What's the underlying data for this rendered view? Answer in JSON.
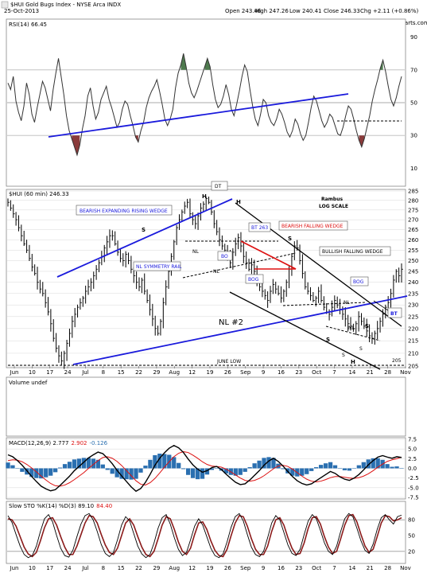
{
  "header": {
    "symbol": "$HUI Gold Bugs Index - NYSE Arca INDX",
    "date": "25-Oct-2013",
    "open": "Open 243.46",
    "high": "High 247.26",
    "low": "Low 240.41",
    "close": "Close 246.33",
    "change": "Chg +2.11 (+0.86%)",
    "credit": "© StockCharts.com"
  },
  "colors": {
    "price_bar": "#000000",
    "trendline_blue": "#1a1adc",
    "trendline_black": "#000000",
    "trendline_red": "#dd1111",
    "rsi_overbought": "#4e7a4e",
    "rsi_oversold": "#8a3b3b",
    "macd": "#000000",
    "macd_signal": "#dd1111",
    "histogram": "#2a6fb0",
    "sto_k": "#000000",
    "sto_d": "#8b1a1a",
    "grid": "#d8d8d8"
  },
  "chart_data": [
    {
      "type": "line",
      "panel": "rsi",
      "title": "RSI(14) 66.45",
      "ylim": [
        0,
        100
      ],
      "y_ticks": [
        10,
        30,
        50,
        70,
        90
      ],
      "reference_lines": [
        30,
        50,
        70
      ],
      "values": [
        62,
        58,
        66,
        51,
        44,
        39,
        48,
        62,
        55,
        43,
        38,
        47,
        55,
        63,
        59,
        52,
        45,
        58,
        68,
        77,
        66,
        55,
        42,
        33,
        28,
        23,
        18,
        24,
        34,
        42,
        54,
        59,
        48,
        40,
        44,
        52,
        56,
        60,
        52,
        47,
        41,
        35,
        38,
        46,
        51,
        49,
        42,
        36,
        29,
        26,
        33,
        38,
        47,
        53,
        57,
        60,
        64,
        57,
        49,
        40,
        36,
        40,
        46,
        59,
        68,
        73,
        80,
        72,
        62,
        56,
        53,
        57,
        62,
        67,
        72,
        77,
        72,
        61,
        52,
        47,
        49,
        54,
        61,
        55,
        46,
        42,
        49,
        57,
        66,
        73,
        69,
        58,
        48,
        40,
        36,
        43,
        52,
        50,
        42,
        38,
        36,
        40,
        46,
        43,
        38,
        32,
        29,
        33,
        40,
        37,
        31,
        27,
        30,
        38,
        47,
        54,
        51,
        45,
        39,
        35,
        38,
        43,
        41,
        36,
        31,
        30,
        35,
        42,
        48,
        46,
        40,
        33,
        27,
        23,
        28,
        35,
        42,
        51,
        58,
        64,
        71,
        76,
        69,
        60,
        52,
        48,
        53,
        60,
        66
      ]
    },
    {
      "type": "bar",
      "panel": "price",
      "title": "$HUI (60 min) 246.33",
      "annotation_note": "Rambus LOG SCALE",
      "ylim": [
        205,
        285
      ],
      "y_ticks": [
        205,
        210,
        215,
        220,
        225,
        230,
        235,
        240,
        245,
        250,
        255,
        260,
        265,
        270,
        275,
        280,
        285
      ],
      "x_ticks": [
        "Jun",
        "10",
        "17",
        "24",
        "Jul",
        "8",
        "15",
        "22",
        "29",
        "Aug",
        "12",
        "19",
        "26",
        "Sep",
        "9",
        "16",
        "23",
        "Oct",
        "7",
        "14",
        "21",
        "28",
        "Nov"
      ],
      "close": [
        279,
        276,
        273,
        270,
        266,
        262,
        258,
        255,
        251,
        247,
        244,
        240,
        237,
        235,
        231,
        227,
        222,
        216,
        212,
        209,
        207,
        210,
        214,
        218,
        223,
        226,
        229,
        231,
        233,
        236,
        238,
        240,
        243,
        246,
        249,
        252,
        256,
        259,
        262,
        262,
        258,
        254,
        251,
        250,
        253,
        250,
        246,
        243,
        240,
        238,
        241,
        236,
        232,
        228,
        224,
        220,
        218,
        223,
        231,
        238,
        245,
        252,
        259,
        266,
        270,
        274,
        277,
        279,
        273,
        270,
        268,
        272,
        276,
        278,
        281,
        279,
        274,
        268,
        264,
        260,
        257,
        255,
        252,
        249,
        254,
        258,
        261,
        257,
        252,
        249,
        246,
        248,
        245,
        241,
        238,
        236,
        234,
        232,
        236,
        239,
        237,
        235,
        233,
        236,
        240,
        246,
        252,
        257,
        256,
        250,
        244,
        238,
        236,
        234,
        232,
        233,
        236,
        232,
        229,
        227,
        226,
        229,
        232,
        230,
        228,
        226,
        224,
        222,
        221,
        220,
        222,
        225,
        223,
        221,
        219,
        217,
        216,
        218,
        220,
        223,
        226,
        229,
        231,
        235,
        241,
        245,
        243,
        246
      ]
    },
    {
      "type": "line",
      "panel": "volume",
      "title": "Volume undef",
      "values": []
    },
    {
      "type": "line",
      "panel": "macd",
      "title": "MACD(12,26,9) 2.777, 2.902, -0.126",
      "legend": [
        "MACD(12,26,9) 2.777",
        "2.902",
        "-0.126"
      ],
      "ylim": [
        -7.5,
        7.5
      ],
      "y_ticks": [
        -7.5,
        -5.0,
        -2.5,
        0.0,
        2.5,
        5.0,
        7.5
      ],
      "macd": [
        3.5,
        3.0,
        2.0,
        0.8,
        -0.6,
        -2.1,
        -3.4,
        -4.6,
        -5.3,
        -5.8,
        -5.5,
        -4.4,
        -3.2,
        -2.0,
        -0.6,
        0.5,
        1.6,
        2.7,
        3.5,
        4.2,
        3.8,
        2.6,
        1.2,
        -0.5,
        -2.0,
        -3.4,
        -4.8,
        -5.9,
        -5.2,
        -3.6,
        -1.5,
        0.8,
        2.6,
        4.0,
        5.2,
        5.9,
        5.3,
        4.1,
        2.4,
        0.9,
        -0.2,
        -1.0,
        -0.6,
        0.2,
        0.5,
        -0.3,
        -1.5,
        -2.6,
        -3.6,
        -4.2,
        -4.0,
        -3.0,
        -1.8,
        -0.6,
        0.8,
        1.9,
        2.6,
        1.8,
        0.6,
        -0.8,
        -2.1,
        -3.2,
        -3.9,
        -4.3,
        -4.0,
        -3.2,
        -2.4,
        -1.6,
        -0.8,
        -1.3,
        -2.2,
        -2.8,
        -3.1,
        -2.5,
        -1.6,
        -0.4,
        0.9,
        2.0,
        2.9,
        3.3,
        2.9,
        2.6,
        3.0,
        2.8
      ],
      "signal": [
        2.0,
        2.2,
        2.1,
        1.7,
        1.0,
        0.1,
        -0.9,
        -2.0,
        -3.0,
        -3.9,
        -4.5,
        -4.6,
        -4.3,
        -3.7,
        -2.9,
        -2.0,
        -1.1,
        0.0,
        1.0,
        2.0,
        2.8,
        3.0,
        2.6,
        1.8,
        0.7,
        -0.6,
        -1.9,
        -3.2,
        -4.1,
        -4.3,
        -3.7,
        -2.6,
        -1.2,
        0.3,
        1.7,
        3.0,
        3.9,
        4.3,
        4.1,
        3.4,
        2.6,
        1.7,
        1.0,
        0.6,
        0.5,
        0.3,
        -0.2,
        -0.9,
        -1.7,
        -2.5,
        -3.1,
        -3.3,
        -3.1,
        -2.6,
        -1.9,
        -1.0,
        -0.1,
        0.6,
        0.8,
        0.5,
        -0.2,
        -1.1,
        -2.0,
        -2.8,
        -3.3,
        -3.5,
        -3.3,
        -2.9,
        -2.4,
        -2.1,
        -2.1,
        -2.3,
        -2.5,
        -2.6,
        -2.4,
        -2.0,
        -1.4,
        -0.6,
        0.3,
        1.1,
        1.8,
        2.2,
        2.5,
        2.9
      ]
    },
    {
      "type": "line",
      "panel": "stochastic",
      "title": "Slow STO %K(14) %D(3) 89.10, 84.40",
      "legend": [
        "Slow STO %K(14) %D(3) 89.10",
        "84.40"
      ],
      "ylim": [
        0,
        100
      ],
      "y_ticks": [
        20,
        50,
        80
      ],
      "reference_lines": [
        20,
        80
      ],
      "k": [
        88,
        75,
        52,
        30,
        14,
        8,
        12,
        30,
        58,
        82,
        90,
        76,
        50,
        26,
        12,
        9,
        22,
        48,
        72,
        88,
        92,
        80,
        58,
        33,
        16,
        10,
        18,
        42,
        70,
        86,
        78,
        54,
        30,
        15,
        8,
        14,
        36,
        64,
        84,
        90,
        72,
        46,
        24,
        12,
        18,
        42,
        68,
        82,
        70,
        48,
        26,
        12,
        8,
        15,
        38,
        66,
        86,
        92,
        78,
        52,
        28,
        14,
        10,
        20,
        46,
        74,
        88,
        80,
        56,
        32,
        16,
        12,
        24,
        52,
        78,
        90,
        82,
        60,
        36,
        20,
        14,
        30,
        58,
        82,
        92,
        86,
        64,
        40,
        22,
        16,
        34,
        62,
        84,
        90,
        80,
        72,
        86,
        89
      ],
      "d": [
        82,
        80,
        68,
        48,
        28,
        15,
        10,
        18,
        40,
        65,
        82,
        84,
        70,
        48,
        28,
        14,
        14,
        30,
        52,
        74,
        88,
        86,
        74,
        52,
        32,
        18,
        14,
        26,
        50,
        74,
        82,
        70,
        48,
        28,
        14,
        10,
        20,
        44,
        70,
        86,
        82,
        62,
        38,
        20,
        14,
        26,
        52,
        74,
        76,
        62,
        40,
        22,
        12,
        10,
        24,
        50,
        74,
        88,
        86,
        68,
        44,
        24,
        14,
        14,
        30,
        58,
        80,
        84,
        70,
        46,
        26,
        14,
        16,
        36,
        64,
        84,
        86,
        72,
        48,
        28,
        16,
        20,
        44,
        70,
        88,
        90,
        76,
        52,
        30,
        18,
        24,
        48,
        74,
        88,
        86,
        78,
        80,
        84
      ]
    }
  ],
  "annotations": {
    "bearish_rising_wedge": "BEARISH EXPANDING RISING WEDGE",
    "nl_symmetry_rail": "NL SYMMETRY RAIL",
    "bt_263": "BT 263",
    "bearish_falling_wedge": "BEARISH FALLING WEDGE",
    "bullish_falling_wedge": "BULLISH FALLING WEDGE",
    "bo1": "BO",
    "bog1": "BOG",
    "bog2": "BOG",
    "bt": "BT",
    "nl2": "NL #2",
    "june_low": "JUNE LOW",
    "rambus": "Rambus",
    "log_scale": "LOG SCALE",
    "dt": "DT",
    "h1": "H",
    "h2": "H",
    "h3": "H",
    "s1": "S",
    "s2": "S",
    "s3": "S",
    "s4": "S",
    "s5": "S",
    "s6": "S",
    "nl_a": "NL",
    "nl_b": "NL",
    "nl_c": "NL",
    "nl_d": "NL",
    "val_205": "205"
  }
}
